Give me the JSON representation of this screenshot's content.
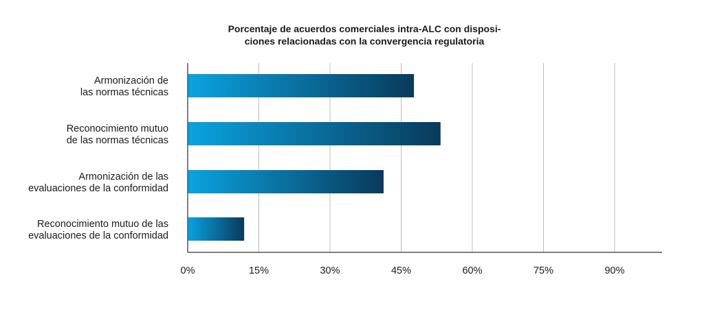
{
  "chart_data": {
    "type": "bar",
    "orientation": "horizontal",
    "title": "Porcentaje de acuerdos comerciales intra-ALC con disposi-ciones relacionadas con la convergencia regulatoria",
    "title_lines": [
      "Porcentaje de acuerdos comerciales intra-ALC con disposi-",
      "ciones relacionadas con la convergencia regulatoria"
    ],
    "categories": [
      "Armonización de las normas técnicas",
      "Reconocimiento mutuo de las normas técnicas",
      "Armonización de las evaluaciones de la conformidad",
      "Reconocimiento mutuo de las evaluaciones de la conformidad"
    ],
    "category_lines": [
      [
        "Armonización de",
        "las normas técnicas"
      ],
      [
        "Reconocimiento mutuo",
        "de las normas técnicas"
      ],
      [
        "Armonización de las",
        "evaluaciones de la conformidad"
      ],
      [
        "Reconocimiento mutuo de las",
        "evaluaciones de la conformidad"
      ]
    ],
    "values": [
      47.7,
      53.3,
      41.3,
      11.9
    ],
    "xlim": [
      0,
      100
    ],
    "xticks": [
      0,
      15,
      30,
      45,
      60,
      75,
      90
    ],
    "xtick_labels": [
      "0%",
      "15%",
      "30%",
      "45%",
      "60%",
      "75%",
      "90%"
    ],
    "grid": true,
    "colors": {
      "bar_start": "#0aa3e0",
      "bar_end": "#093a5c",
      "grid": "#bdbdbd",
      "axis": "#555555"
    }
  }
}
